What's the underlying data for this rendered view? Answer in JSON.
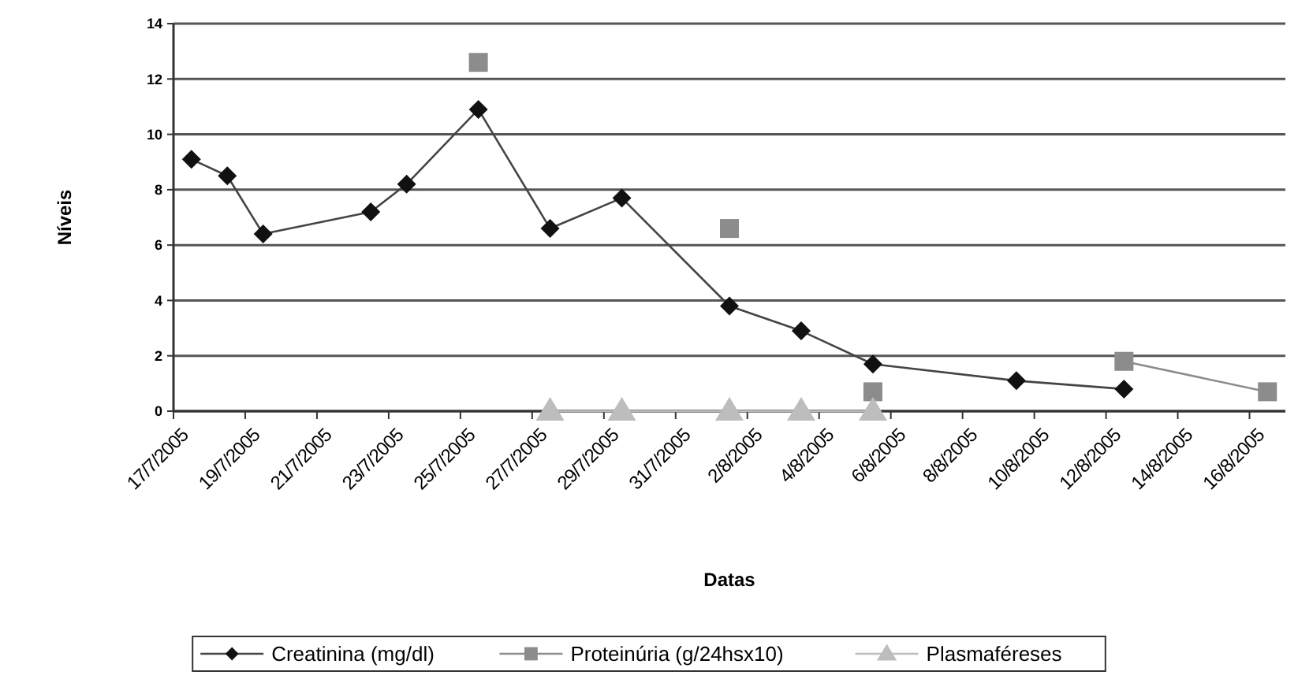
{
  "chart_data": {
    "type": "line",
    "xlabel": "Datas",
    "ylabel": "Níveis",
    "x": [
      "2005-07-17T12:00",
      "2005-07-18T12:00",
      "2005-07-19T12:00",
      "2005-07-22T12:00",
      "2005-07-23T12:00",
      "2005-07-25T12:00",
      "2005-07-27T12:00",
      "2005-07-29T12:00",
      "2005-08-01T12:00",
      "2005-08-03T12:00",
      "2005-08-05T12:00",
      "2005-08-09T12:00",
      "2005-08-12T12:00",
      "2005-08-16T12:00"
    ],
    "series": [
      {
        "name": "Creatinina (mg/dl)",
        "color": "#111111",
        "marker": "diamond",
        "values": [
          9.1,
          8.5,
          6.4,
          7.2,
          8.2,
          10.9,
          6.6,
          7.7,
          3.8,
          2.9,
          1.7,
          1.1,
          0.8,
          null
        ]
      },
      {
        "name": "Proteinúria (g/24hsx10)",
        "color": "#8c8c8c",
        "marker": "square",
        "values": [
          null,
          null,
          null,
          null,
          null,
          12.6,
          null,
          null,
          6.6,
          null,
          0.7,
          null,
          1.8,
          0.7
        ]
      },
      {
        "name": "Plasmaféreses",
        "color": "#bdbdbd",
        "marker": "triangle",
        "values": [
          null,
          null,
          null,
          null,
          null,
          null,
          0,
          0,
          0,
          0,
          0,
          null,
          null,
          null
        ]
      }
    ],
    "xlim": [
      "2005-07-17",
      "2005-08-17"
    ],
    "xticks": [
      {
        "value": "2005-07-17",
        "label": "17/7/2005"
      },
      {
        "value": "2005-07-19",
        "label": "19/7/2005"
      },
      {
        "value": "2005-07-21",
        "label": "21/7/2005"
      },
      {
        "value": "2005-07-23",
        "label": "23/7/2005"
      },
      {
        "value": "2005-07-25",
        "label": "25/7/2005"
      },
      {
        "value": "2005-07-27",
        "label": "27/7/2005"
      },
      {
        "value": "2005-07-29",
        "label": "29/7/2005"
      },
      {
        "value": "2005-07-31",
        "label": "31/7/2005"
      },
      {
        "value": "2005-08-02",
        "label": "2/8/2005"
      },
      {
        "value": "2005-08-04",
        "label": "4/8/2005"
      },
      {
        "value": "2005-08-06",
        "label": "6/8/2005"
      },
      {
        "value": "2005-08-08",
        "label": "8/8/2005"
      },
      {
        "value": "2005-08-10",
        "label": "10/8/2005"
      },
      {
        "value": "2005-08-12",
        "label": "12/8/2005"
      },
      {
        "value": "2005-08-14",
        "label": "14/8/2005"
      },
      {
        "value": "2005-08-16",
        "label": "16/8/2005"
      }
    ],
    "ylim": [
      0,
      14
    ],
    "yticks": [
      0,
      2,
      4,
      6,
      8,
      10,
      12,
      14
    ],
    "grid": "y",
    "legend": "bottom"
  }
}
